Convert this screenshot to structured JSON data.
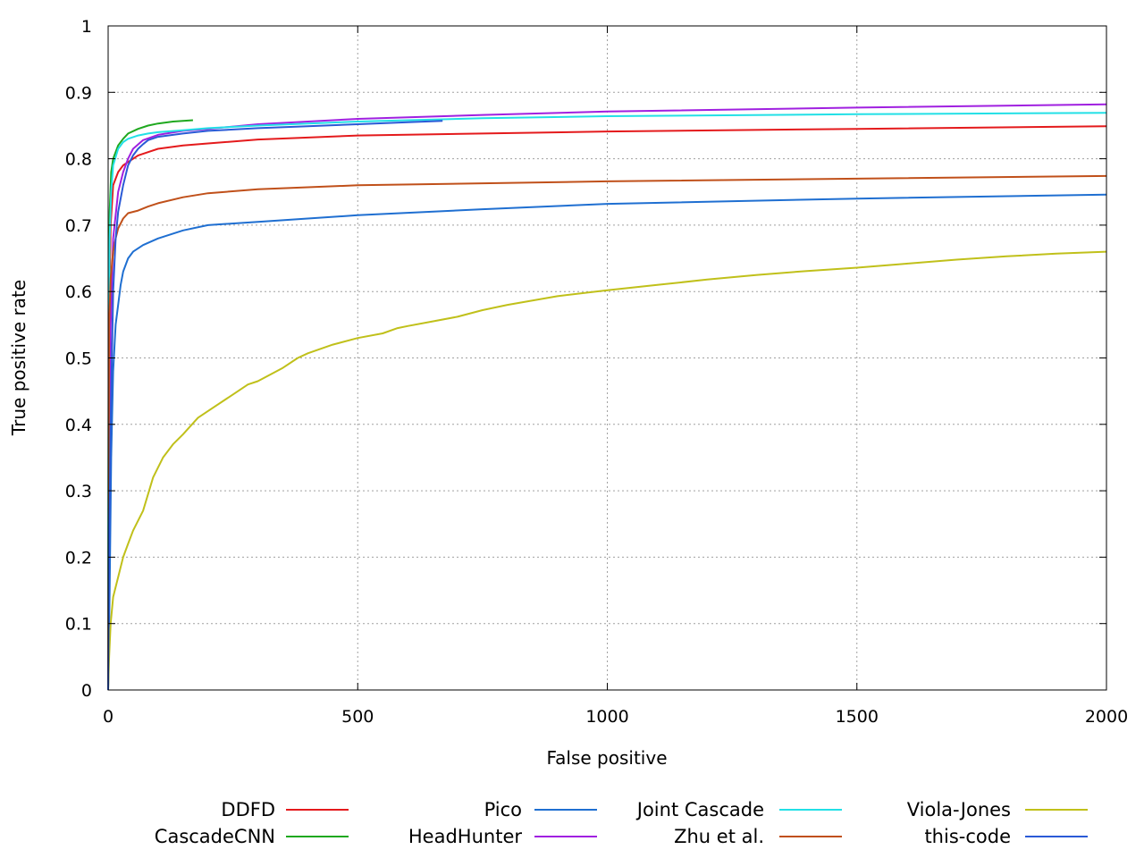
{
  "chart_data": {
    "type": "line",
    "title": "",
    "xlabel": "False positive",
    "ylabel": "True positive rate",
    "xlim": [
      0,
      2000
    ],
    "ylim": [
      0,
      1
    ],
    "x_ticks": [
      0,
      500,
      1000,
      1500,
      2000
    ],
    "x_tick_labels": [
      "0",
      "500",
      "1000",
      "1500",
      "2000"
    ],
    "y_ticks": [
      0,
      0.1,
      0.2,
      0.3,
      0.4,
      0.5,
      0.6,
      0.7,
      0.8,
      0.9,
      1
    ],
    "y_tick_labels": [
      "0",
      "0.1",
      "0.2",
      "0.3",
      "0.4",
      "0.5",
      "0.6",
      "0.7",
      "0.8",
      "0.9",
      "1"
    ],
    "grid": true,
    "legend_position": "bottom",
    "series": [
      {
        "name": "DDFD",
        "color": "#e41a1c",
        "x": [
          0,
          2,
          5,
          10,
          20,
          30,
          40,
          60,
          80,
          100,
          150,
          200,
          300,
          500,
          750,
          1000,
          1500,
          2000
        ],
        "y": [
          0,
          0.55,
          0.7,
          0.76,
          0.78,
          0.79,
          0.795,
          0.805,
          0.81,
          0.815,
          0.82,
          0.823,
          0.829,
          0.835,
          0.838,
          0.841,
          0.845,
          0.849
        ]
      },
      {
        "name": "CascadeCNN",
        "color": "#1fa81f",
        "x": [
          0,
          1,
          3,
          6,
          10,
          20,
          30,
          40,
          60,
          80,
          100,
          130,
          170
        ],
        "y": [
          0,
          0.55,
          0.72,
          0.78,
          0.8,
          0.82,
          0.83,
          0.838,
          0.845,
          0.85,
          0.853,
          0.856,
          0.858
        ]
      },
      {
        "name": "Pico",
        "color": "#1f6fd1",
        "x": [
          0,
          3,
          6,
          10,
          15,
          20,
          25,
          30,
          40,
          50,
          70,
          100,
          150,
          200,
          300,
          400,
          500,
          750,
          1000,
          1500,
          2000
        ],
        "y": [
          0,
          0.15,
          0.35,
          0.48,
          0.55,
          0.58,
          0.61,
          0.63,
          0.65,
          0.66,
          0.67,
          0.68,
          0.692,
          0.7,
          0.705,
          0.71,
          0.715,
          0.724,
          0.732,
          0.74,
          0.746
        ]
      },
      {
        "name": "HeadHunter",
        "color": "#a020e0",
        "x": [
          0,
          2,
          5,
          10,
          20,
          30,
          40,
          50,
          70,
          100,
          150,
          200,
          300,
          500,
          750,
          1000,
          1500,
          2000
        ],
        "y": [
          0,
          0.35,
          0.55,
          0.68,
          0.75,
          0.78,
          0.8,
          0.815,
          0.828,
          0.836,
          0.842,
          0.845,
          0.852,
          0.86,
          0.866,
          0.871,
          0.877,
          0.882
        ]
      },
      {
        "name": "Joint Cascade",
        "color": "#22e0e6",
        "x": [
          0,
          1,
          3,
          6,
          10,
          20,
          30,
          40,
          60,
          80,
          100,
          150,
          200,
          300,
          500,
          750,
          1000,
          1500,
          2000
        ],
        "y": [
          0,
          0.5,
          0.68,
          0.75,
          0.79,
          0.815,
          0.825,
          0.83,
          0.835,
          0.838,
          0.84,
          0.843,
          0.846,
          0.85,
          0.856,
          0.861,
          0.864,
          0.867,
          0.869
        ]
      },
      {
        "name": "Zhu et al.",
        "color": "#c0501a",
        "x": [
          0,
          2,
          5,
          10,
          15,
          20,
          30,
          40,
          60,
          80,
          100,
          150,
          200,
          300,
          500,
          750,
          1000,
          1500,
          2000
        ],
        "y": [
          0,
          0.55,
          0.62,
          0.66,
          0.68,
          0.695,
          0.71,
          0.718,
          0.722,
          0.728,
          0.733,
          0.742,
          0.748,
          0.754,
          0.76,
          0.763,
          0.766,
          0.77,
          0.774
        ]
      },
      {
        "name": "Viola-Jones",
        "color": "#c0c01a",
        "x": [
          0,
          2,
          5,
          10,
          20,
          30,
          40,
          50,
          70,
          90,
          110,
          130,
          150,
          180,
          200,
          250,
          280,
          300,
          350,
          380,
          400,
          450,
          500,
          550,
          580,
          600,
          650,
          700,
          750,
          800,
          900,
          1000,
          1100,
          1200,
          1300,
          1400,
          1500,
          1600,
          1700,
          1800,
          1900,
          2000
        ],
        "y": [
          0,
          0.05,
          0.1,
          0.14,
          0.17,
          0.2,
          0.22,
          0.24,
          0.27,
          0.32,
          0.35,
          0.37,
          0.385,
          0.41,
          0.42,
          0.445,
          0.46,
          0.465,
          0.485,
          0.5,
          0.507,
          0.52,
          0.53,
          0.537,
          0.545,
          0.548,
          0.555,
          0.562,
          0.572,
          0.58,
          0.593,
          0.602,
          0.61,
          0.618,
          0.625,
          0.631,
          0.636,
          0.642,
          0.648,
          0.653,
          0.657,
          0.66
        ]
      },
      {
        "name": "this-code",
        "color": "#2a5ad6",
        "x": [
          0,
          2,
          5,
          10,
          15,
          20,
          30,
          40,
          50,
          60,
          70,
          80,
          100,
          150,
          200,
          300,
          400,
          500,
          600,
          670
        ],
        "y": [
          0,
          0.2,
          0.4,
          0.6,
          0.68,
          0.72,
          0.76,
          0.79,
          0.805,
          0.815,
          0.822,
          0.828,
          0.833,
          0.838,
          0.842,
          0.846,
          0.849,
          0.852,
          0.855,
          0.857
        ]
      }
    ]
  }
}
